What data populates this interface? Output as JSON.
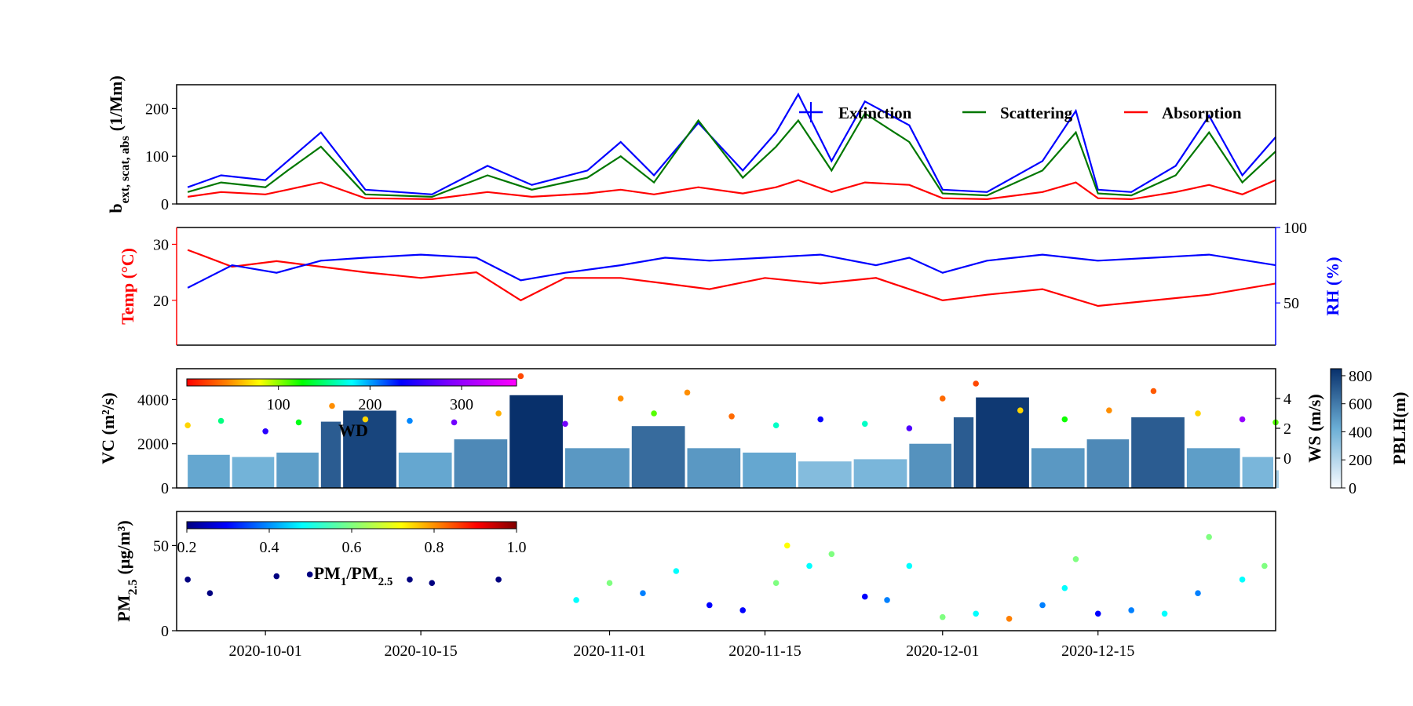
{
  "chart_data": [
    {
      "type": "line",
      "ylabel": "b",
      "ylabel_sub": "ext, scat, abs",
      "ylabel_unit": "(1/Mm)",
      "ylim": [
        0,
        250
      ],
      "yticks": [
        "0",
        "100",
        "200"
      ],
      "legend": {
        "position": "top-right",
        "entries": [
          "Extinction",
          "Scattering",
          "Absorption"
        ]
      },
      "series": [
        {
          "name": "Extinction",
          "color": "#0000ff",
          "x": [
            "2020-09-24",
            "2020-09-27",
            "2020-10-01",
            "2020-10-03",
            "2020-10-06",
            "2020-10-10",
            "2020-10-16",
            "2020-10-21",
            "2020-10-25",
            "2020-10-30",
            "2020-11-02",
            "2020-11-05",
            "2020-11-09",
            "2020-11-13",
            "2020-11-16",
            "2020-11-18",
            "2020-11-21",
            "2020-11-24",
            "2020-11-28",
            "2020-12-01",
            "2020-12-05",
            "2020-12-10",
            "2020-12-13",
            "2020-12-15",
            "2020-12-18",
            "2020-12-22",
            "2020-12-25",
            "2020-12-28",
            "2020-12-31"
          ],
          "values": [
            35,
            60,
            50,
            90,
            150,
            30,
            20,
            80,
            40,
            70,
            130,
            60,
            170,
            70,
            150,
            230,
            90,
            215,
            165,
            30,
            25,
            90,
            195,
            30,
            25,
            80,
            185,
            60,
            140
          ]
        },
        {
          "name": "Scattering",
          "color": "#007700",
          "x": [
            "2020-09-24",
            "2020-09-27",
            "2020-10-01",
            "2020-10-03",
            "2020-10-06",
            "2020-10-10",
            "2020-10-16",
            "2020-10-21",
            "2020-10-25",
            "2020-10-30",
            "2020-11-02",
            "2020-11-05",
            "2020-11-09",
            "2020-11-13",
            "2020-11-16",
            "2020-11-18",
            "2020-11-21",
            "2020-11-24",
            "2020-11-28",
            "2020-12-01",
            "2020-12-05",
            "2020-12-10",
            "2020-12-13",
            "2020-12-15",
            "2020-12-18",
            "2020-12-22",
            "2020-12-25",
            "2020-12-28",
            "2020-12-31"
          ],
          "values": [
            25,
            45,
            35,
            70,
            120,
            20,
            15,
            60,
            30,
            55,
            100,
            45,
            175,
            55,
            120,
            175,
            70,
            190,
            130,
            22,
            18,
            70,
            150,
            22,
            18,
            60,
            150,
            45,
            110
          ]
        },
        {
          "name": "Absorption",
          "color": "#ff0000",
          "x": [
            "2020-09-24",
            "2020-09-27",
            "2020-10-01",
            "2020-10-03",
            "2020-10-06",
            "2020-10-10",
            "2020-10-16",
            "2020-10-21",
            "2020-10-25",
            "2020-10-30",
            "2020-11-02",
            "2020-11-05",
            "2020-11-09",
            "2020-11-13",
            "2020-11-16",
            "2020-11-18",
            "2020-11-21",
            "2020-11-24",
            "2020-11-28",
            "2020-12-01",
            "2020-12-05",
            "2020-12-10",
            "2020-12-13",
            "2020-12-15",
            "2020-12-18",
            "2020-12-22",
            "2020-12-25",
            "2020-12-28",
            "2020-12-31"
          ],
          "values": [
            15,
            25,
            20,
            30,
            45,
            12,
            10,
            25,
            15,
            22,
            30,
            20,
            35,
            22,
            35,
            50,
            25,
            45,
            40,
            12,
            10,
            25,
            45,
            12,
            10,
            25,
            40,
            20,
            50
          ]
        }
      ]
    },
    {
      "type": "line",
      "ylabel_left": "Temp (°C)",
      "ylabel_left_color": "#ff0000",
      "ylim_left": [
        12,
        33
      ],
      "yticks_left": [
        "20",
        "30"
      ],
      "ylabel_right": "RH (%)",
      "ylabel_right_color": "#0000ff",
      "ylim_right": [
        22,
        100
      ],
      "yticks_right": [
        "50",
        "100"
      ],
      "series": [
        {
          "name": "Temp",
          "axis": "left",
          "color": "#ff0000",
          "x": [
            "2020-09-24",
            "2020-09-28",
            "2020-10-02",
            "2020-10-06",
            "2020-10-10",
            "2020-10-15",
            "2020-10-20",
            "2020-10-24",
            "2020-10-28",
            "2020-11-02",
            "2020-11-06",
            "2020-11-10",
            "2020-11-15",
            "2020-11-20",
            "2020-11-25",
            "2020-11-28",
            "2020-12-01",
            "2020-12-05",
            "2020-12-10",
            "2020-12-15",
            "2020-12-20",
            "2020-12-25",
            "2020-12-31"
          ],
          "values": [
            29,
            26,
            27,
            26,
            25,
            24,
            25,
            20,
            24,
            24,
            23,
            22,
            24,
            23,
            24,
            22,
            20,
            21,
            22,
            19,
            20,
            21,
            23
          ]
        },
        {
          "name": "RH",
          "axis": "right",
          "color": "#0000ff",
          "x": [
            "2020-09-24",
            "2020-09-28",
            "2020-10-02",
            "2020-10-06",
            "2020-10-10",
            "2020-10-15",
            "2020-10-20",
            "2020-10-24",
            "2020-10-28",
            "2020-11-02",
            "2020-11-06",
            "2020-11-10",
            "2020-11-15",
            "2020-11-20",
            "2020-11-25",
            "2020-11-28",
            "2020-12-01",
            "2020-12-05",
            "2020-12-10",
            "2020-12-15",
            "2020-12-20",
            "2020-12-25",
            "2020-12-31"
          ],
          "values": [
            60,
            75,
            70,
            78,
            80,
            82,
            80,
            65,
            70,
            75,
            80,
            78,
            80,
            82,
            75,
            80,
            70,
            78,
            82,
            78,
            80,
            82,
            75
          ]
        }
      ]
    },
    {
      "type": "bar+scatter",
      "ylabel": "VC (m²/s)",
      "ylim": [
        0,
        5400
      ],
      "yticks": [
        "0",
        "2000",
        "4000"
      ],
      "ylabel_right": "WS (m/s)",
      "ylim_right": [
        -2,
        6
      ],
      "yticks_right": [
        "0",
        "2",
        "4"
      ],
      "bars": {
        "name": "PBLH",
        "x": [
          "2020-09-24",
          "2020-09-28",
          "2020-10-02",
          "2020-10-06",
          "2020-10-08",
          "2020-10-13",
          "2020-10-18",
          "2020-10-23",
          "2020-10-28",
          "2020-11-03",
          "2020-11-08",
          "2020-11-13",
          "2020-11-18",
          "2020-11-23",
          "2020-11-28",
          "2020-12-02",
          "2020-12-04",
          "2020-12-09",
          "2020-12-14",
          "2020-12-18",
          "2020-12-23",
          "2020-12-28",
          "2020-12-31"
        ],
        "values": [
          1500,
          1400,
          1600,
          3000,
          3500,
          1600,
          2200,
          4200,
          1800,
          2800,
          1800,
          1600,
          1200,
          1300,
          2000,
          3200,
          4100,
          1800,
          2200,
          3200,
          1800,
          1400,
          800
        ],
        "pblh": [
          450,
          400,
          480,
          700,
          780,
          450,
          550,
          850,
          500,
          650,
          500,
          450,
          350,
          380,
          520,
          700,
          820,
          500,
          550,
          700,
          480,
          380,
          250
        ]
      },
      "scatter": {
        "name": "WS",
        "colored_by": "WD",
        "x": [
          "2020-09-24",
          "2020-09-27",
          "2020-10-01",
          "2020-10-04",
          "2020-10-07",
          "2020-10-10",
          "2020-10-14",
          "2020-10-18",
          "2020-10-22",
          "2020-10-24",
          "2020-10-28",
          "2020-11-02",
          "2020-11-05",
          "2020-11-08",
          "2020-11-12",
          "2020-11-16",
          "2020-11-20",
          "2020-11-24",
          "2020-11-28",
          "2020-12-01",
          "2020-12-04",
          "2020-12-08",
          "2020-12-12",
          "2020-12-16",
          "2020-12-20",
          "2020-12-24",
          "2020-12-28",
          "2020-12-31"
        ],
        "values": [
          2.2,
          2.5,
          1.8,
          2.4,
          3.5,
          2.6,
          2.5,
          2.4,
          3.0,
          5.5,
          2.3,
          4.0,
          3.0,
          4.4,
          2.8,
          2.2,
          2.6,
          2.3,
          2.0,
          4.0,
          5.0,
          3.2,
          2.6,
          3.2,
          4.5,
          3.0,
          2.6,
          2.4
        ],
        "wd": [
          60,
          180,
          300,
          150,
          40,
          60,
          250,
          320,
          50,
          20,
          320,
          40,
          120,
          40,
          30,
          200,
          290,
          200,
          310,
          30,
          20,
          60,
          140,
          40,
          25,
          60,
          330,
          120
        ]
      },
      "colorbar_wd": {
        "label": "WD",
        "ticks": [
          "100",
          "200",
          "300"
        ],
        "range": [
          0,
          360
        ]
      },
      "colorbar_pblh": {
        "label": "PBLH(m)",
        "ticks": [
          "0",
          "200",
          "400",
          "600",
          "800"
        ],
        "range": [
          0,
          850
        ]
      }
    },
    {
      "type": "scatter",
      "ylabel": "PM",
      "ylabel_sub": "2.5",
      "ylabel_unit": "(μg/m³)",
      "ylim": [
        0,
        70
      ],
      "yticks": [
        "0",
        "50"
      ],
      "xlim": [
        "2020-09-23",
        "2020-12-31"
      ],
      "xticks": [
        "2020-10-01",
        "2020-10-15",
        "2020-11-01",
        "2020-11-15",
        "2020-12-01",
        "2020-12-15"
      ],
      "colorbar": {
        "label": "PM",
        "label_sub1": "1",
        "label_mid": "/PM",
        "label_sub2": "2.5",
        "ticks": [
          "0.2",
          "0.4",
          "0.6",
          "0.8",
          "1.0"
        ],
        "range": [
          0.2,
          1.0
        ]
      },
      "x": [
        "2020-09-24",
        "2020-09-26",
        "2020-10-02",
        "2020-10-05",
        "2020-10-14",
        "2020-10-16",
        "2020-10-22",
        "2020-10-29",
        "2020-11-01",
        "2020-11-04",
        "2020-11-07",
        "2020-11-10",
        "2020-11-13",
        "2020-11-16",
        "2020-11-17",
        "2020-11-19",
        "2020-11-21",
        "2020-11-24",
        "2020-11-26",
        "2020-11-28",
        "2020-12-01",
        "2020-12-04",
        "2020-12-07",
        "2020-12-10",
        "2020-12-12",
        "2020-12-13",
        "2020-12-15",
        "2020-12-18",
        "2020-12-21",
        "2020-12-24",
        "2020-12-25",
        "2020-12-28",
        "2020-12-30"
      ],
      "values": [
        30,
        22,
        32,
        33,
        30,
        28,
        30,
        18,
        28,
        22,
        35,
        15,
        12,
        28,
        50,
        38,
        45,
        20,
        18,
        38,
        8,
        10,
        7,
        15,
        25,
        42,
        10,
        12,
        10,
        22,
        55,
        30,
        38
      ],
      "ratio": [
        0.2,
        0.2,
        0.2,
        0.2,
        0.2,
        0.2,
        0.2,
        0.5,
        0.6,
        0.4,
        0.5,
        0.3,
        0.3,
        0.6,
        0.7,
        0.5,
        0.6,
        0.3,
        0.4,
        0.5,
        0.6,
        0.5,
        0.8,
        0.4,
        0.5,
        0.6,
        0.3,
        0.4,
        0.5,
        0.4,
        0.6,
        0.5,
        0.6
      ]
    }
  ]
}
